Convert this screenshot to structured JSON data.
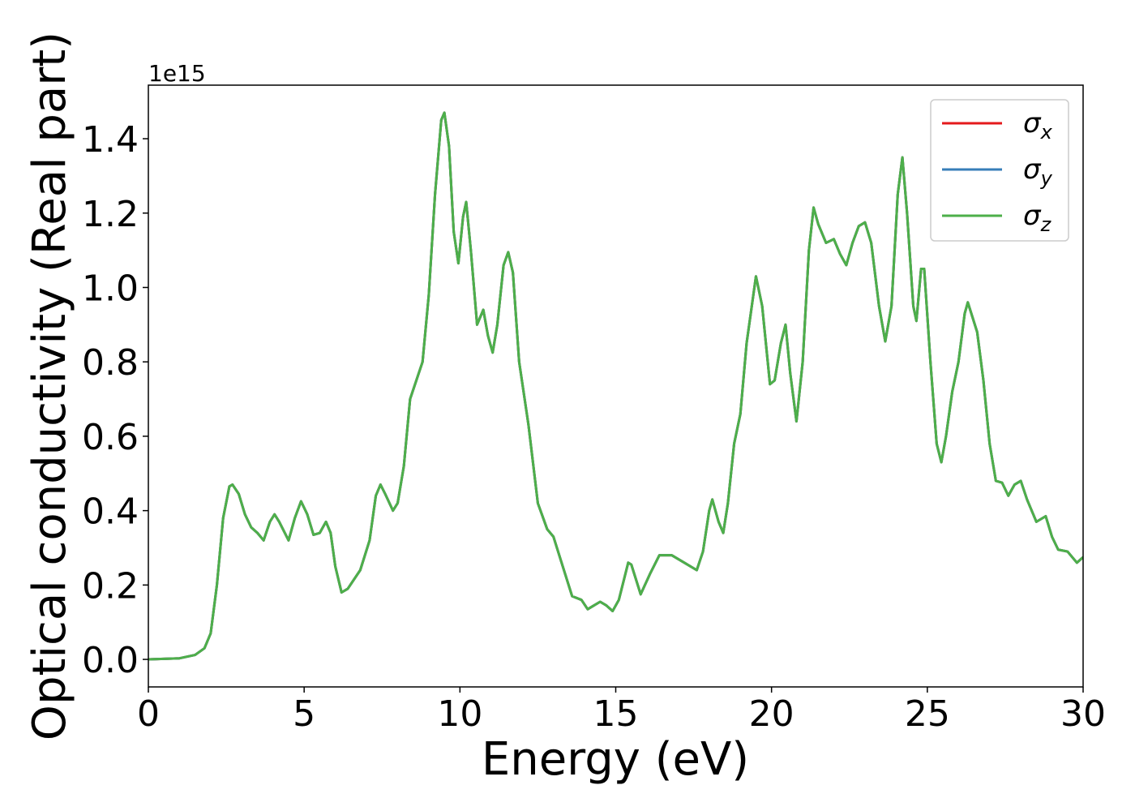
{
  "chart_data": {
    "type": "line",
    "xlabel": "Energy (eV)",
    "ylabel": "Optical conductivity (Real part)",
    "y_offset_label": "1e15",
    "xlim": [
      0,
      30
    ],
    "xticks": [
      0,
      5,
      10,
      15,
      20,
      25,
      30
    ],
    "ylim": [
      -0.074,
      1.544
    ],
    "yticks": [
      {
        "value": 0,
        "label": "0.0"
      },
      0.2,
      0.4,
      0.6,
      0.8,
      {
        "value": 1,
        "label": "1.0"
      },
      1.2,
      1.4
    ],
    "legend": "upper right",
    "x": [
      0,
      1,
      1.5,
      1.8,
      2.0,
      2.2,
      2.4,
      2.6,
      2.7,
      2.9,
      3.1,
      3.3,
      3.5,
      3.7,
      3.9,
      4.05,
      4.2,
      4.5,
      4.7,
      4.9,
      5.1,
      5.3,
      5.5,
      5.7,
      5.85,
      6.0,
      6.2,
      6.4,
      6.8,
      7.1,
      7.3,
      7.45,
      7.6,
      7.85,
      8.0,
      8.2,
      8.4,
      8.6,
      8.8,
      9.0,
      9.2,
      9.4,
      9.5,
      9.65,
      9.8,
      9.95,
      10.1,
      10.2,
      10.35,
      10.55,
      10.75,
      10.9,
      11.05,
      11.2,
      11.4,
      11.55,
      11.7,
      11.9,
      12.2,
      12.5,
      12.8,
      13.0,
      13.3,
      13.6,
      13.9,
      14.1,
      14.3,
      14.5,
      14.7,
      14.9,
      15.1,
      15.4,
      15.5,
      15.8,
      16.1,
      16.4,
      16.8,
      17.2,
      17.6,
      17.8,
      18.0,
      18.1,
      18.3,
      18.45,
      18.6,
      18.8,
      19.0,
      19.2,
      19.5,
      19.7,
      19.95,
      20.1,
      20.3,
      20.45,
      20.6,
      20.8,
      21.0,
      21.2,
      21.35,
      21.5,
      21.75,
      22.0,
      22.2,
      22.4,
      22.6,
      22.8,
      23.0,
      23.2,
      23.45,
      23.65,
      23.85,
      24.05,
      24.2,
      24.35,
      24.55,
      24.65,
      24.8,
      24.9,
      25.1,
      25.3,
      25.45,
      25.6,
      25.8,
      26.0,
      26.2,
      26.3,
      26.6,
      26.8,
      27.0,
      27.2,
      27.4,
      27.6,
      27.8,
      28.0,
      28.2,
      28.5,
      28.8,
      29.0,
      29.2,
      29.5,
      29.8,
      30.0
    ],
    "series": [
      {
        "name": "σx",
        "color": "#e41a1c",
        "values": [
          0,
          0.003,
          0.012,
          0.03,
          0.07,
          0.2,
          0.38,
          0.465,
          0.47,
          0.445,
          0.39,
          0.355,
          0.34,
          0.32,
          0.37,
          0.39,
          0.37,
          0.32,
          0.38,
          0.425,
          0.39,
          0.335,
          0.34,
          0.37,
          0.34,
          0.25,
          0.18,
          0.19,
          0.24,
          0.32,
          0.44,
          0.47,
          0.445,
          0.4,
          0.42,
          0.52,
          0.7,
          0.75,
          0.8,
          0.98,
          1.25,
          1.45,
          1.47,
          1.38,
          1.15,
          1.065,
          1.19,
          1.23,
          1.1,
          0.9,
          0.94,
          0.87,
          0.825,
          0.9,
          1.06,
          1.095,
          1.04,
          0.8,
          0.63,
          0.42,
          0.35,
          0.33,
          0.25,
          0.17,
          0.16,
          0.135,
          0.145,
          0.155,
          0.145,
          0.13,
          0.16,
          0.26,
          0.255,
          0.175,
          0.23,
          0.28,
          0.28,
          0.26,
          0.24,
          0.29,
          0.4,
          0.43,
          0.37,
          0.34,
          0.42,
          0.58,
          0.66,
          0.85,
          1.03,
          0.95,
          0.74,
          0.75,
          0.85,
          0.9,
          0.77,
          0.64,
          0.8,
          1.1,
          1.215,
          1.17,
          1.12,
          1.13,
          1.09,
          1.06,
          1.12,
          1.165,
          1.175,
          1.12,
          0.95,
          0.855,
          0.95,
          1.25,
          1.35,
          1.2,
          0.95,
          0.91,
          1.05,
          1.05,
          0.8,
          0.58,
          0.53,
          0.6,
          0.72,
          0.8,
          0.93,
          0.96,
          0.88,
          0.75,
          0.58,
          0.48,
          0.475,
          0.44,
          0.47,
          0.48,
          0.43,
          0.37,
          0.385,
          0.33,
          0.295,
          0.29,
          0.26,
          0.275
        ]
      },
      {
        "name": "σy",
        "color": "#377eb8",
        "values": [
          0,
          0.003,
          0.012,
          0.03,
          0.07,
          0.2,
          0.38,
          0.465,
          0.47,
          0.445,
          0.39,
          0.355,
          0.34,
          0.32,
          0.37,
          0.39,
          0.37,
          0.32,
          0.38,
          0.425,
          0.39,
          0.335,
          0.34,
          0.37,
          0.34,
          0.25,
          0.18,
          0.19,
          0.24,
          0.32,
          0.44,
          0.47,
          0.445,
          0.4,
          0.42,
          0.52,
          0.7,
          0.75,
          0.8,
          0.98,
          1.25,
          1.45,
          1.47,
          1.38,
          1.15,
          1.065,
          1.19,
          1.23,
          1.1,
          0.9,
          0.94,
          0.87,
          0.825,
          0.9,
          1.06,
          1.095,
          1.04,
          0.8,
          0.63,
          0.42,
          0.35,
          0.33,
          0.25,
          0.17,
          0.16,
          0.135,
          0.145,
          0.155,
          0.145,
          0.13,
          0.16,
          0.26,
          0.255,
          0.175,
          0.23,
          0.28,
          0.28,
          0.26,
          0.24,
          0.29,
          0.4,
          0.43,
          0.37,
          0.34,
          0.42,
          0.58,
          0.66,
          0.85,
          1.03,
          0.95,
          0.74,
          0.75,
          0.85,
          0.9,
          0.77,
          0.64,
          0.8,
          1.1,
          1.215,
          1.17,
          1.12,
          1.13,
          1.09,
          1.06,
          1.12,
          1.165,
          1.175,
          1.12,
          0.95,
          0.855,
          0.95,
          1.25,
          1.35,
          1.2,
          0.95,
          0.91,
          1.05,
          1.05,
          0.8,
          0.58,
          0.53,
          0.6,
          0.72,
          0.8,
          0.93,
          0.96,
          0.88,
          0.75,
          0.58,
          0.48,
          0.475,
          0.44,
          0.47,
          0.48,
          0.43,
          0.37,
          0.385,
          0.33,
          0.295,
          0.29,
          0.26,
          0.275
        ]
      },
      {
        "name": "σz",
        "color": "#4daf4a",
        "values": [
          0,
          0.003,
          0.012,
          0.03,
          0.07,
          0.2,
          0.38,
          0.465,
          0.47,
          0.445,
          0.39,
          0.355,
          0.34,
          0.32,
          0.37,
          0.39,
          0.37,
          0.32,
          0.38,
          0.425,
          0.39,
          0.335,
          0.34,
          0.37,
          0.34,
          0.25,
          0.18,
          0.19,
          0.24,
          0.32,
          0.44,
          0.47,
          0.445,
          0.4,
          0.42,
          0.52,
          0.7,
          0.75,
          0.8,
          0.98,
          1.25,
          1.45,
          1.47,
          1.38,
          1.15,
          1.065,
          1.19,
          1.23,
          1.1,
          0.9,
          0.94,
          0.87,
          0.825,
          0.9,
          1.06,
          1.095,
          1.04,
          0.8,
          0.63,
          0.42,
          0.35,
          0.33,
          0.25,
          0.17,
          0.16,
          0.135,
          0.145,
          0.155,
          0.145,
          0.13,
          0.16,
          0.26,
          0.255,
          0.175,
          0.23,
          0.28,
          0.28,
          0.26,
          0.24,
          0.29,
          0.4,
          0.43,
          0.37,
          0.34,
          0.42,
          0.58,
          0.66,
          0.85,
          1.03,
          0.95,
          0.74,
          0.75,
          0.85,
          0.9,
          0.77,
          0.64,
          0.8,
          1.1,
          1.215,
          1.17,
          1.12,
          1.13,
          1.09,
          1.06,
          1.12,
          1.165,
          1.175,
          1.12,
          0.95,
          0.855,
          0.95,
          1.25,
          1.35,
          1.2,
          0.95,
          0.91,
          1.05,
          1.05,
          0.8,
          0.58,
          0.53,
          0.6,
          0.72,
          0.8,
          0.93,
          0.96,
          0.88,
          0.75,
          0.58,
          0.48,
          0.475,
          0.44,
          0.47,
          0.48,
          0.43,
          0.37,
          0.385,
          0.33,
          0.295,
          0.29,
          0.26,
          0.275
        ]
      }
    ]
  }
}
